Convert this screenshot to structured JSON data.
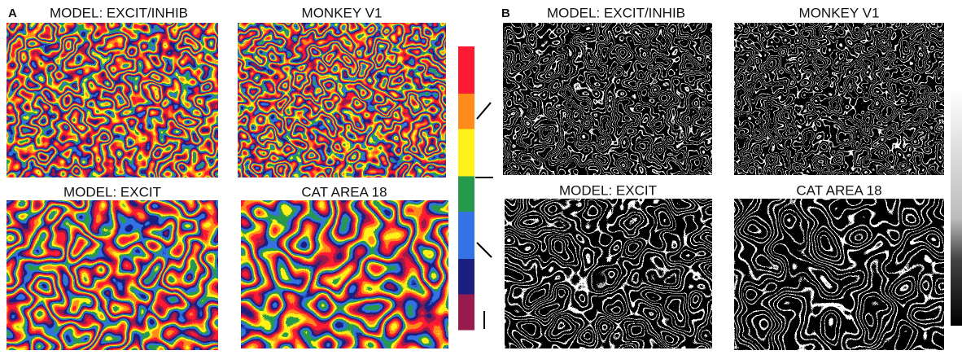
{
  "panel_a": {
    "label": "A",
    "maps": [
      {
        "title": "MODEL: EXCIT/INHIB"
      },
      {
        "title": "MONKEY V1"
      },
      {
        "title": "MODEL: EXCIT"
      },
      {
        "title": "CAT AREA 18"
      }
    ]
  },
  "panel_b": {
    "label": "B",
    "maps": [
      {
        "title": "MODEL: EXCIT/INHIB"
      },
      {
        "title": "MONKEY V1"
      },
      {
        "title": "MODEL: EXCIT"
      },
      {
        "title": "CAT AREA 18"
      }
    ]
  }
}
